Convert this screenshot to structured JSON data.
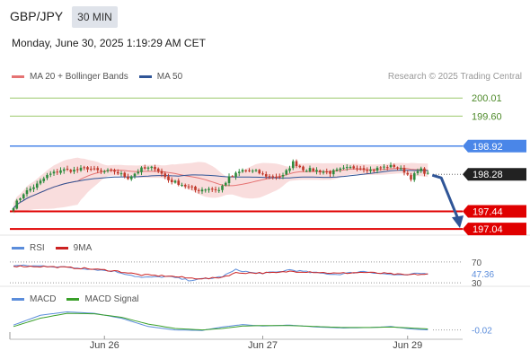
{
  "header": {
    "symbol": "GBP/JPY",
    "timeframe": "30 MIN",
    "datetime": "Monday, June 30, 2025 1:19:29 AM CET"
  },
  "attribution": "Research © 2025 Trading Central",
  "colors": {
    "up": "#2e8b3e",
    "down": "#c0392b",
    "ma20": "#e57373",
    "band_fill": "#f7d5d5",
    "ma50": "#2f5597",
    "pivot_blue": "#4a86e8",
    "support_red": "#e00000",
    "target_green": "#9bc96b",
    "rsi": "#5b8ddb",
    "rsi9ma": "#cc2222",
    "macd": "#5b8ddb",
    "macd_signal": "#3aa02a",
    "arrow": "#2f5597"
  },
  "chart_data": [
    {
      "type": "candlestick",
      "panel": "price",
      "legend": [
        {
          "name": "MA 20 + Bollinger Bands",
          "color": "#e57373"
        },
        {
          "name": "MA 50",
          "color": "#2f5597"
        }
      ],
      "ylim": [
        196.9,
        200.3
      ],
      "levels": [
        {
          "value": 200.01,
          "label": "200.01",
          "style": "target"
        },
        {
          "value": 199.6,
          "label": "199.60",
          "style": "target"
        },
        {
          "value": 198.92,
          "label": "198.92",
          "style": "pivot"
        },
        {
          "value": 198.28,
          "label": "198.28",
          "style": "last"
        },
        {
          "value": 197.44,
          "label": "197.44",
          "style": "support"
        },
        {
          "value": 197.04,
          "label": "197.04",
          "style": "support"
        }
      ],
      "x_ticks": [
        {
          "index": 27,
          "label": "Jun 26"
        },
        {
          "index": 74,
          "label": "Jun 27"
        },
        {
          "index": 117,
          "label": "Jun 29"
        }
      ],
      "n_bars": 124,
      "close_anchors": [
        [
          0,
          197.55
        ],
        [
          3,
          197.85
        ],
        [
          7,
          198.05
        ],
        [
          10,
          198.25
        ],
        [
          14,
          198.38
        ],
        [
          18,
          198.37
        ],
        [
          22,
          198.42
        ],
        [
          26,
          198.34
        ],
        [
          30,
          198.35
        ],
        [
          34,
          198.2
        ],
        [
          38,
          198.4
        ],
        [
          42,
          198.43
        ],
        [
          46,
          198.15
        ],
        [
          50,
          198.05
        ],
        [
          54,
          197.92
        ],
        [
          58,
          197.96
        ],
        [
          61,
          197.92
        ],
        [
          64,
          198.2
        ],
        [
          68,
          198.37
        ],
        [
          72,
          198.34
        ],
        [
          76,
          198.22
        ],
        [
          80,
          198.24
        ],
        [
          83,
          198.55
        ],
        [
          86,
          198.4
        ],
        [
          90,
          198.37
        ],
        [
          94,
          198.32
        ],
        [
          98,
          198.4
        ],
        [
          102,
          198.45
        ],
        [
          106,
          198.38
        ],
        [
          110,
          198.44
        ],
        [
          113,
          198.47
        ],
        [
          116,
          198.35
        ],
        [
          118,
          198.2
        ],
        [
          120,
          198.34
        ],
        [
          121,
          198.38
        ],
        [
          123,
          198.28
        ]
      ],
      "projection": {
        "from": 198.28,
        "to": 197.04
      }
    },
    {
      "type": "line",
      "panel": "rsi",
      "legend": [
        {
          "name": "RSI",
          "color": "#5b8ddb"
        },
        {
          "name": "9MA",
          "color": "#cc2222"
        }
      ],
      "levels": [
        {
          "value": 70,
          "label": "70"
        },
        {
          "value": 30,
          "label": "30"
        }
      ],
      "last_value": "47.36",
      "ylim": [
        25,
        80
      ],
      "series": [
        {
          "name": "RSI",
          "anchors": [
            [
              0,
              63
            ],
            [
              10,
              62
            ],
            [
              20,
              58
            ],
            [
              30,
              52
            ],
            [
              38,
              40
            ],
            [
              46,
              42
            ],
            [
              52,
              35
            ],
            [
              58,
              38
            ],
            [
              62,
              42
            ],
            [
              66,
              55
            ],
            [
              72,
              48
            ],
            [
              78,
              50
            ],
            [
              82,
              55
            ],
            [
              88,
              50
            ],
            [
              96,
              46
            ],
            [
              104,
              52
            ],
            [
              110,
              47
            ],
            [
              116,
              44
            ],
            [
              120,
              48
            ],
            [
              123,
              47.36
            ]
          ]
        },
        {
          "name": "9MA",
          "anchors": [
            [
              0,
              62
            ],
            [
              10,
              61
            ],
            [
              20,
              58
            ],
            [
              30,
              53
            ],
            [
              38,
              45
            ],
            [
              46,
              43
            ],
            [
              52,
              39
            ],
            [
              58,
              38
            ],
            [
              62,
              41
            ],
            [
              66,
              49
            ],
            [
              72,
              49
            ],
            [
              78,
              49
            ],
            [
              82,
              52
            ],
            [
              88,
              51
            ],
            [
              96,
              48
            ],
            [
              104,
              50
            ],
            [
              110,
              48
            ],
            [
              116,
              45
            ],
            [
              120,
              46
            ],
            [
              123,
              46.5
            ]
          ]
        }
      ]
    },
    {
      "type": "line",
      "panel": "macd",
      "legend": [
        {
          "name": "MACD",
          "color": "#5b8ddb"
        },
        {
          "name": "MACD Signal",
          "color": "#3aa02a"
        }
      ],
      "last_value": "-0.02",
      "ylim": [
        -0.1,
        0.45
      ],
      "series": [
        {
          "name": "MACD",
          "anchors": [
            [
              0,
              0.08
            ],
            [
              8,
              0.28
            ],
            [
              16,
              0.35
            ],
            [
              24,
              0.32
            ],
            [
              32,
              0.22
            ],
            [
              40,
              0.05
            ],
            [
              48,
              -0.02
            ],
            [
              56,
              -0.03
            ],
            [
              62,
              0.04
            ],
            [
              68,
              0.09
            ],
            [
              74,
              0.06
            ],
            [
              82,
              0.08
            ],
            [
              90,
              0.04
            ],
            [
              98,
              0.02
            ],
            [
              106,
              0.03
            ],
            [
              112,
              0.05
            ],
            [
              118,
              0.0
            ],
            [
              123,
              -0.02
            ]
          ]
        },
        {
          "name": "MACD Signal",
          "anchors": [
            [
              0,
              0.05
            ],
            [
              8,
              0.22
            ],
            [
              16,
              0.32
            ],
            [
              24,
              0.31
            ],
            [
              32,
              0.24
            ],
            [
              40,
              0.1
            ],
            [
              48,
              0.01
            ],
            [
              56,
              -0.02
            ],
            [
              62,
              0.01
            ],
            [
              68,
              0.06
            ],
            [
              74,
              0.07
            ],
            [
              82,
              0.07
            ],
            [
              90,
              0.05
            ],
            [
              98,
              0.03
            ],
            [
              106,
              0.03
            ],
            [
              112,
              0.04
            ],
            [
              118,
              0.02
            ],
            [
              123,
              0.0
            ]
          ]
        }
      ]
    }
  ]
}
